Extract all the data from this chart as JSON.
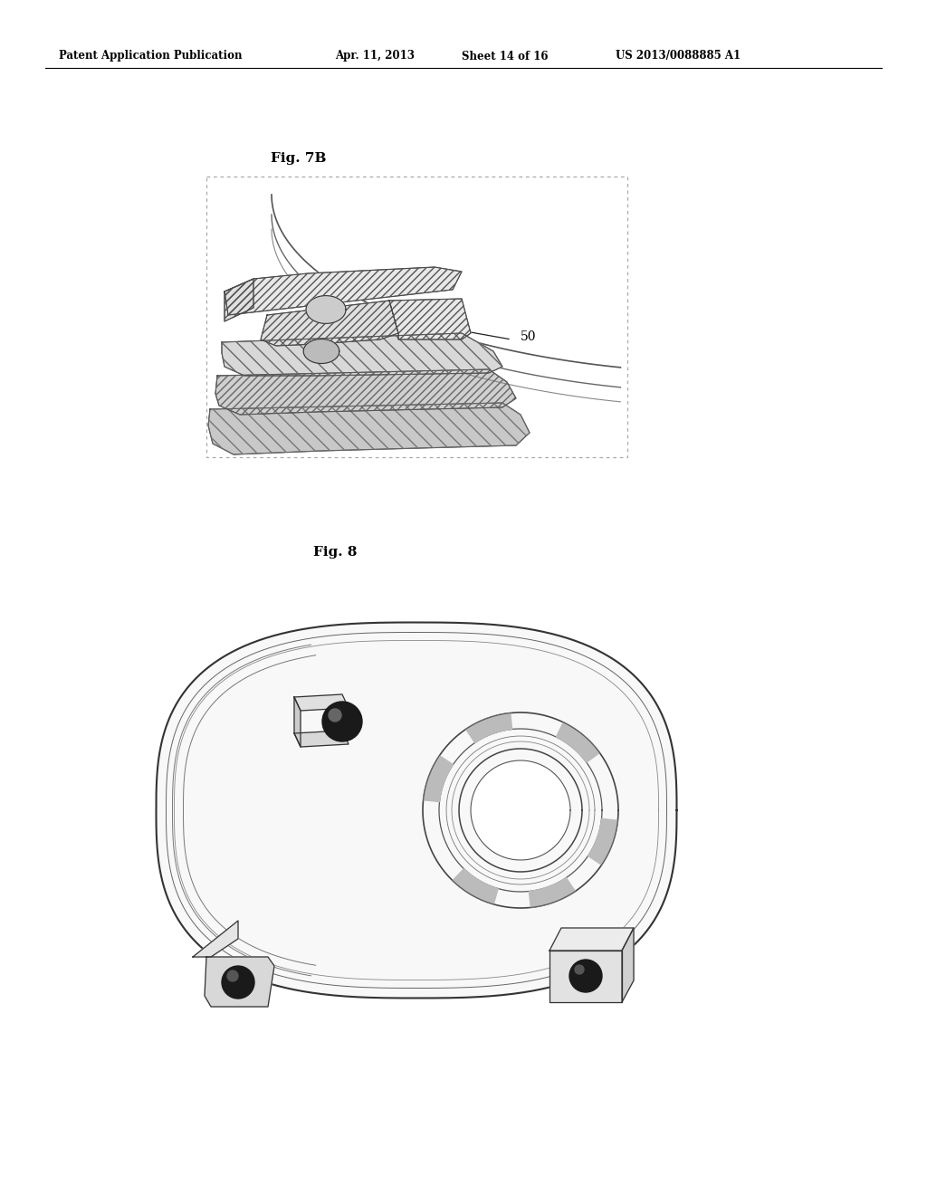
{
  "background_color": "#ffffff",
  "header_text": "Patent Application Publication",
  "header_date": "Apr. 11, 2013",
  "header_sheet": "Sheet 14 of 16",
  "header_patent": "US 2013/0088885 A1",
  "fig7b_label": "Fig. 7B",
  "fig8_label": "Fig. 8",
  "label_50": "50",
  "text_color": "#000000",
  "line_color": "#000000"
}
